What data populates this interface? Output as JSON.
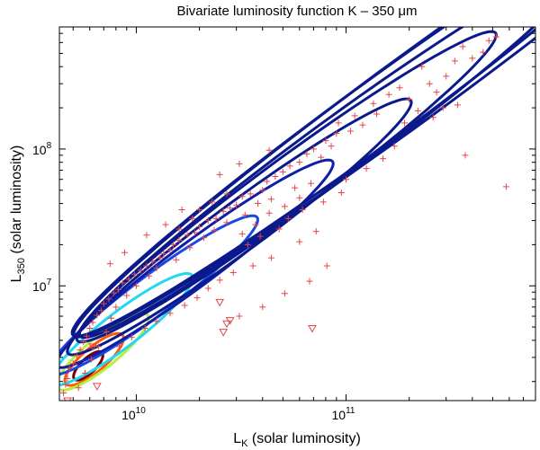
{
  "chart_data": {
    "type": "contour",
    "title": "Bivariate luminosity function K – 350 μm",
    "xlabel": {
      "main": "L",
      "sub": "K",
      "rest": " (solar luminosity)"
    },
    "ylabel": {
      "main": "L",
      "sub": "350",
      "rest": " (solar luminosity)"
    },
    "x_scale": "log",
    "y_scale": "log",
    "xlim": [
      4300000000.0,
      800000000000.0
    ],
    "ylim": [
      1450000.0,
      780000000.0
    ],
    "x_ticks": [
      {
        "value": 10000000000.0,
        "base": "10",
        "exp": "10"
      },
      {
        "value": 100000000000.0,
        "base": "10",
        "exp": "11"
      }
    ],
    "y_ticks": [
      {
        "value": 10000000.0,
        "base": "10",
        "exp": "7"
      },
      {
        "value": 100000000.0,
        "base": "10",
        "exp": "8"
      }
    ],
    "ridge": {
      "x1": 5500000000.0,
      "y1": 2400000.0,
      "x2": 800000000000.0,
      "y2": 600000000.0
    },
    "contours": [
      {
        "color": "#7a0000",
        "center_x": 5900000000.0,
        "center_y": 2600000.0,
        "x_half_span": 0.07,
        "width": 0.07
      },
      {
        "color": "#ff5a00",
        "center_x": 6300000000.0,
        "center_y": 2900000.0,
        "x_half_span": 0.14,
        "width": 0.11
      },
      {
        "color": "#b7f03c",
        "center_x": 6900000000.0,
        "center_y": 3300000.0,
        "x_half_span": 0.22,
        "width": 0.14
      },
      {
        "color": "#20d8f0",
        "center_x": 8500000000.0,
        "center_y": 4800000.0,
        "x_half_span": 0.34,
        "width": 0.16
      },
      {
        "color": "#1a48e0",
        "center_x": 12000000000.0,
        "center_y": 8500000.0,
        "x_half_span": 0.5,
        "width": 0.18
      },
      {
        "color": "#0e1ea8",
        "center_x": 19000000000.0,
        "center_y": 14500000.0,
        "x_half_span": 0.66,
        "width": 0.2
      },
      {
        "color": "#0a1a8c",
        "center_x": 31000000000.0,
        "center_y": 27000000.0,
        "x_half_span": 0.82,
        "width": 0.22
      },
      {
        "color": "#0a1a8c",
        "center_x": 52000000000.0,
        "center_y": 53000000.0,
        "x_half_span": 1.0,
        "width": 0.24
      },
      {
        "color": "#0a1a8c",
        "center_x": 85000000000.0,
        "center_y": 95000000.0,
        "x_half_span": 1.2,
        "width": 0.26
      },
      {
        "color": "#0a1a8c",
        "center_x": 130000000000.0,
        "center_y": 170000000.0,
        "x_half_span": 1.42,
        "width": 0.28
      },
      {
        "color": "#0a1a8c",
        "center_x": 210000000000.0,
        "center_y": 280000000.0,
        "x_half_span": 1.62,
        "width": 0.3
      }
    ],
    "detections": [
      [
        480000000000.0,
        620000000.0
      ],
      [
        520000000000.0,
        660000000.0
      ],
      [
        360000000000.0,
        560000000.0
      ],
      [
        450000000000.0,
        510000000.0
      ],
      [
        330000000000.0,
        440000000.0
      ],
      [
        230000000000.0,
        400000000.0
      ],
      [
        250000000000.0,
        300000000.0
      ],
      [
        180000000000.0,
        280000000.0
      ],
      [
        160000000000.0,
        250000000.0
      ],
      [
        200000000000.0,
        230000000.0
      ],
      [
        290000000000.0,
        200000000.0
      ],
      [
        140000000000.0,
        180000000.0
      ],
      [
        120000000000.0,
        150000000.0
      ],
      [
        105000000000.0,
        135000000.0
      ],
      [
        90000000000.0,
        130000000.0
      ],
      [
        80000000000.0,
        115000000.0
      ],
      [
        85000000000.0,
        105000000.0
      ],
      [
        70000000000.0,
        100000000.0
      ],
      [
        65000000000.0,
        92000000.0
      ],
      [
        76000000000.0,
        87000000.0
      ],
      [
        60000000000.0,
        80000000.0
      ],
      [
        54000000000.0,
        75000000.0
      ],
      [
        50000000000.0,
        68000000.0
      ],
      [
        46000000000.0,
        63000000.0
      ],
      [
        42000000000.0,
        58000000.0
      ],
      [
        68000000000.0,
        56000000.0
      ],
      [
        57000000000.0,
        52000000.0
      ],
      [
        40000000000.0,
        50000000.0
      ],
      [
        35000000000.0,
        47000000.0
      ],
      [
        32000000000.0,
        45000000.0
      ],
      [
        44000000000.0,
        43000000.0
      ],
      [
        38000000000.0,
        40000000.0
      ],
      [
        30000000000.0,
        39000000.0
      ],
      [
        28000000000.0,
        37000000.0
      ],
      [
        26000000000.0,
        35000000.0
      ],
      [
        33000000000.0,
        33000000.0
      ],
      [
        24000000000.0,
        31000000.0
      ],
      [
        22000000000.0,
        30000000.0
      ],
      [
        27000000000.0,
        29000000.0
      ],
      [
        20000000000.0,
        27000000.0
      ],
      [
        23500000000.0,
        25500000.0
      ],
      [
        19000000000.0,
        24500000.0
      ],
      [
        17500000000.0,
        23500000.0
      ],
      [
        21000000000.0,
        22500000.0
      ],
      [
        16000000000.0,
        21500000.0
      ],
      [
        15000000000.0,
        20000000.0
      ],
      [
        18000000000.0,
        19000000.0
      ],
      [
        14500000000.0,
        18200000.0
      ],
      [
        13500000000.0,
        17200000.0
      ],
      [
        13000000000.0,
        16000000.0
      ],
      [
        15500000000.0,
        15500000.0
      ],
      [
        12000000000.0,
        15000000.0
      ],
      [
        11200000000.0,
        14000000.0
      ],
      [
        12500000000.0,
        13500000.0
      ],
      [
        10500000000.0,
        13000000.0
      ],
      [
        9800000000.0,
        12200000.0
      ],
      [
        11500000000.0,
        11800000.0
      ],
      [
        9200000000.0,
        11200000.0
      ],
      [
        8600000000.0,
        10500000.0
      ],
      [
        10000000000.0,
        10000000.0
      ],
      [
        8200000000.0,
        9400000.0
      ],
      [
        7800000000.0,
        8900000.0
      ],
      [
        9000000000.0,
        8500000.0
      ],
      [
        7400000000.0,
        8000000.0
      ],
      [
        7000000000.0,
        7400000.0
      ],
      [
        8000000000.0,
        7000000.0
      ],
      [
        6800000000.0,
        6600000.0
      ],
      [
        6500000000.0,
        6100000.0
      ],
      [
        7600000000.0,
        5800000.0
      ],
      [
        6200000000.0,
        5400000.0
      ],
      [
        6000000000.0,
        4900000.0
      ],
      [
        7200000000.0,
        4600000.0
      ],
      [
        5800000000.0,
        4300000.0
      ],
      [
        5600000000.0,
        3900000.0
      ],
      [
        6600000000.0,
        3600000.0
      ],
      [
        5400000000.0,
        3400000.0
      ],
      [
        5200000000.0,
        3100000.0
      ],
      [
        6100000000.0,
        2900000.0
      ],
      [
        5000000000.0,
        2700000.0
      ],
      [
        4800000000.0,
        2500000.0
      ],
      [
        5700000000.0,
        2300000.0
      ],
      [
        4700000000.0,
        2100000.0
      ],
      [
        4600000000.0,
        1900000.0
      ],
      [
        5300000000.0,
        1800000.0
      ],
      [
        4500000000.0,
        1650000.0
      ],
      [
        170000000000.0,
        105000000.0
      ],
      [
        150000000000.0,
        85000000.0
      ],
      [
        125000000000.0,
        72000000.0
      ],
      [
        100000000000.0,
        60000000.0
      ],
      [
        95000000000.0,
        48000000.0
      ],
      [
        78000000000.0,
        41000000.0
      ],
      [
        62000000000.0,
        36000000.0
      ],
      [
        53000000000.0,
        31000000.0
      ],
      [
        48000000000.0,
        26000000.0
      ],
      [
        39000000000.0,
        23000000.0
      ],
      [
        34000000000.0,
        20000000.0
      ],
      [
        72000000000.0,
        25000000.0
      ],
      [
        60000000000.0,
        21000000.0
      ],
      [
        44000000000.0,
        16000000.0
      ],
      [
        36000000000.0,
        14000000.0
      ],
      [
        29000000000.0,
        12500000.0
      ],
      [
        25000000000.0,
        11000000.0
      ],
      [
        22000000000.0,
        9600000.0
      ],
      [
        19500000000.0,
        8200000.0
      ],
      [
        17000000000.0,
        7200000.0
      ],
      [
        14500000000.0,
        6300000.0
      ],
      [
        12500000000.0,
        5500000.0
      ],
      [
        11000000000.0,
        4900000.0
      ],
      [
        9500000000.0,
        4200000.0
      ],
      [
        8300000000.0,
        3600000.0
      ],
      [
        400000000000.0,
        460000000.0
      ],
      [
        300000000000.0,
        340000000.0
      ],
      [
        270000000000.0,
        260000000.0
      ],
      [
        220000000000.0,
        190000000.0
      ],
      [
        190000000000.0,
        155000000.0
      ],
      [
        260000000000.0,
        170000000.0
      ],
      [
        340000000000.0,
        210000000.0
      ],
      [
        135000000000.0,
        215000000.0
      ],
      [
        110000000000.0,
        175000000.0
      ],
      [
        92000000000.0,
        155000000.0
      ],
      [
        580000000000.0,
        53000000.0
      ],
      [
        370000000000.0,
        90000000.0
      ],
      [
        43000000000.0,
        98000000.0
      ],
      [
        31000000000.0,
        78000000.0
      ],
      [
        25000000000.0,
        65000000.0
      ],
      [
        16500000000.0,
        36000000.0
      ],
      [
        13800000000.0,
        28000000.0
      ],
      [
        11200000000.0,
        23500000.0
      ],
      [
        8800000000.0,
        17500000.0
      ],
      [
        7500000000.0,
        14500000.0
      ],
      [
        67000000000.0,
        10800000.0
      ],
      [
        51000000000.0,
        8800000.0
      ],
      [
        40000000000.0,
        7000000.0
      ],
      [
        31000000000.0,
        6000000.0
      ],
      [
        81000000000.0,
        14000000.0
      ],
      [
        27000000000.0,
        47000000.0
      ],
      [
        23000000000.0,
        41000000.0
      ],
      [
        20000000000.0,
        36000000.0
      ],
      [
        18500000000.0,
        31000000.0
      ],
      [
        16000000000.0,
        26000000.0
      ],
      [
        60000000000.0,
        44000000.0
      ],
      [
        51000000000.0,
        38000000.0
      ],
      [
        43000000000.0,
        34000000.0
      ],
      [
        37000000000.0,
        28000000.0
      ],
      [
        32000000000.0,
        24000000.0
      ]
    ],
    "upper_limits": [
      [
        25000000000.0,
        7600000.0
      ],
      [
        28000000000.0,
        5600000.0
      ],
      [
        27000000000.0,
        5300000.0
      ],
      [
        26000000000.0,
        4600000.0
      ],
      [
        69000000000.0,
        4900000.0
      ],
      [
        6200000000.0,
        3600000.0
      ],
      [
        6500000000.0,
        1850000.0
      ],
      [
        4700000000.0,
        1450000.0
      ]
    ],
    "detection_color": "#e0474c",
    "upper_limit_color": "#e0474c"
  }
}
